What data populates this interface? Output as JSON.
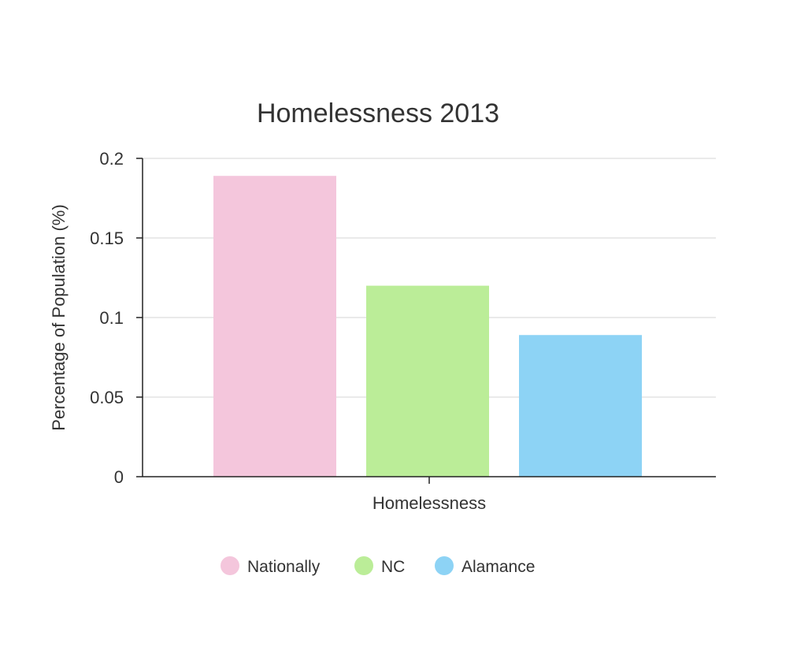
{
  "chart_data": {
    "type": "bar",
    "title": "Homelessness 2013",
    "xlabel": "",
    "ylabel": "Percentage of Population (%)",
    "categories": [
      "Homelessness"
    ],
    "series": [
      {
        "name": "Nationally",
        "values": [
          0.189
        ],
        "color": "#f4c6dc"
      },
      {
        "name": "NC",
        "values": [
          0.12
        ],
        "color": "#bbed98"
      },
      {
        "name": "Alamance",
        "values": [
          0.089
        ],
        "color": "#8dd3f5"
      }
    ],
    "ylim": [
      0,
      0.2
    ],
    "yticks": [
      "0",
      "0.05",
      "0.1",
      "0.15",
      "0.2"
    ],
    "grid": true,
    "legend_position": "bottom"
  }
}
